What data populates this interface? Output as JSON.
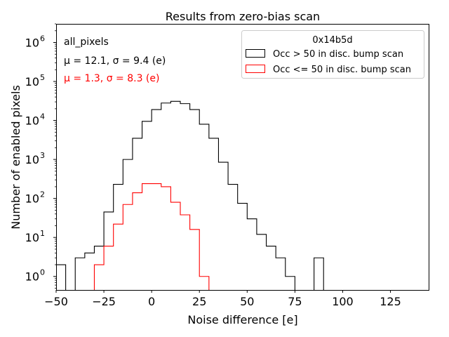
{
  "chart_data": {
    "type": "histogram",
    "title": "Results from zero-bias scan",
    "xlabel": "Noise difference [e]",
    "ylabel": "Number of enabled pixels",
    "xlim": [
      -50,
      145
    ],
    "ylim": [
      0.45,
      3000000
    ],
    "yscale": "log",
    "xticks": [
      -50,
      -25,
      0,
      25,
      50,
      75,
      100,
      125
    ],
    "xtick_labels": [
      "−50",
      "−25",
      "0",
      "25",
      "50",
      "75",
      "100",
      "125"
    ],
    "yticks": [
      1,
      10,
      100,
      1000,
      10000,
      100000,
      1000000
    ],
    "ytick_bases": [
      "10",
      "10",
      "10",
      "10",
      "10",
      "10",
      "10"
    ],
    "ytick_exponents": [
      "0",
      "1",
      "2",
      "3",
      "4",
      "5",
      "6"
    ],
    "bin_edges": [
      -50,
      -45,
      -40,
      -35,
      -30,
      -25,
      -20,
      -15,
      -10,
      -5,
      0,
      5,
      10,
      15,
      20,
      25,
      30,
      35,
      40,
      45,
      50,
      55,
      60,
      65,
      70,
      75,
      80,
      85,
      90
    ],
    "series": [
      {
        "name": "Occ > 50 in disc. bump scan",
        "color": "#000000",
        "counts": [
          2,
          0,
          3,
          4,
          6,
          45,
          230,
          1000,
          3500,
          9500,
          19000,
          28000,
          31000,
          27000,
          19000,
          8000,
          3500,
          850,
          230,
          75,
          30,
          12,
          6,
          3,
          1,
          0,
          0,
          3
        ]
      },
      {
        "name": "Occ <= 50 in disc. bump scan",
        "color": "#ff0000",
        "counts": [
          0,
          0,
          0,
          0,
          2,
          6,
          22,
          70,
          140,
          240,
          240,
          200,
          80,
          38,
          16,
          1,
          0,
          0,
          0,
          0,
          0,
          0,
          0,
          0,
          0,
          0,
          0,
          0
        ]
      }
    ],
    "legend": {
      "title": "0x14b5d",
      "position": "top-right",
      "entries": [
        "Occ > 50 in disc. bump scan",
        "Occ <= 50 in disc. bump scan"
      ]
    },
    "annotations": [
      {
        "text": "all_pixels",
        "color": "#000000"
      },
      {
        "text": "μ = 12.1, σ = 9.4 (e)",
        "color": "#000000"
      },
      {
        "text": "μ = 1.3, σ = 8.3 (e)",
        "color": "#ff0000"
      }
    ]
  }
}
